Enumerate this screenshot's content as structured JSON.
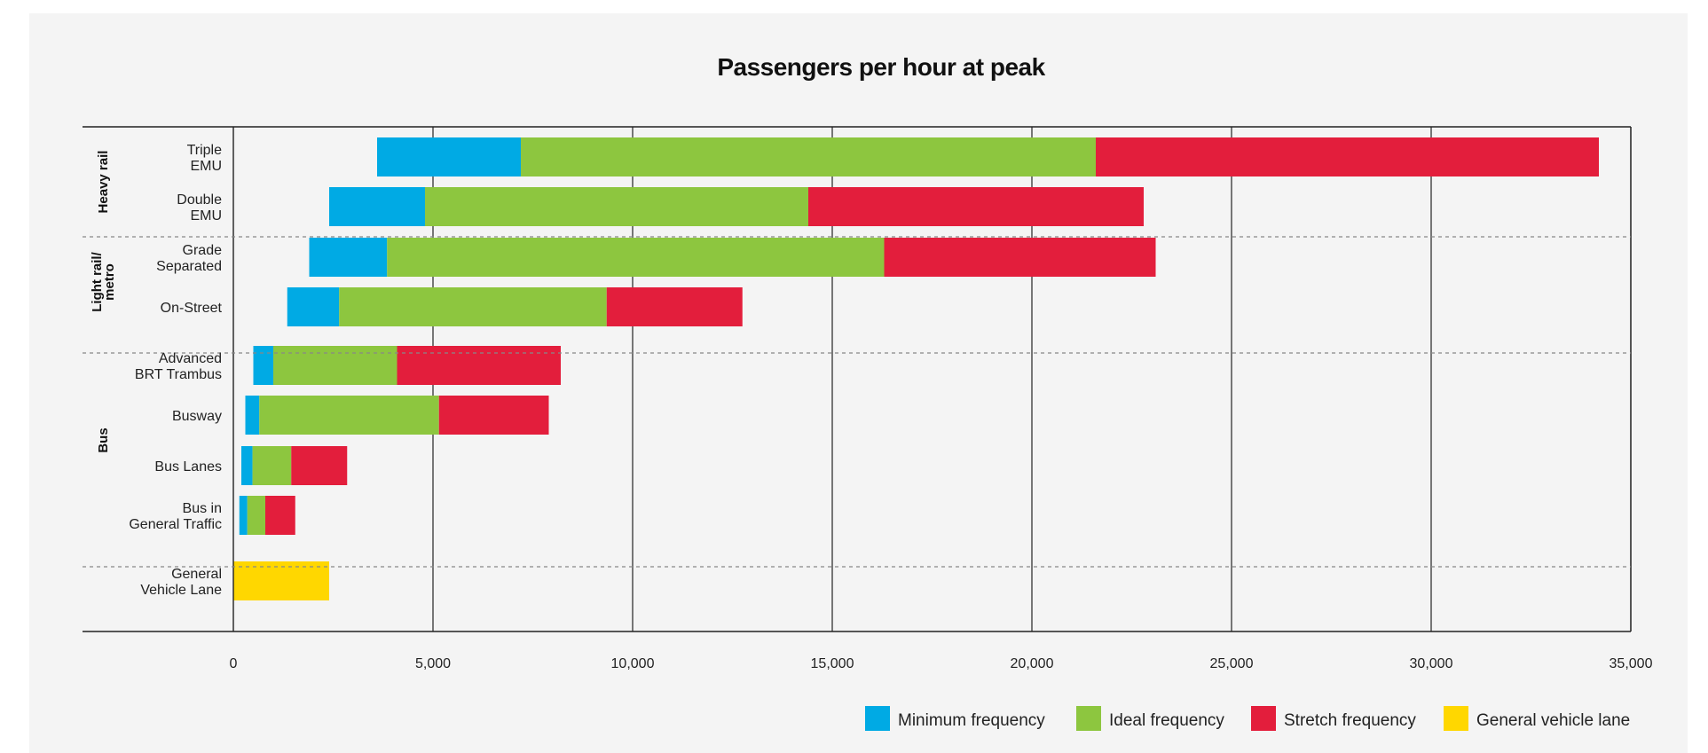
{
  "chart_data": {
    "type": "bar",
    "orientation": "horizontal",
    "stacked": true,
    "title": "Passengers per hour at peak",
    "xlim": [
      0,
      35000
    ],
    "x_ticks": [
      0,
      5000,
      10000,
      15000,
      20000,
      25000,
      30000,
      35000
    ],
    "x_tick_labels": [
      "0",
      "5,000",
      "10,000",
      "15,000",
      "20,000",
      "25,000",
      "30,000",
      "35,000"
    ],
    "grid": true,
    "legend_position": "bottom-right",
    "groups": [
      {
        "name": "Heavy rail",
        "categories": [
          0,
          1
        ]
      },
      {
        "name": "Light rail/ metro",
        "lines": [
          "Light rail/",
          "metro"
        ],
        "categories": [
          2,
          3
        ]
      },
      {
        "name": "Bus",
        "categories": [
          4,
          5,
          6,
          7
        ]
      },
      {
        "name": "",
        "categories": [
          8
        ]
      }
    ],
    "categories": [
      {
        "label": "Triple EMU",
        "lines": [
          "Triple",
          "EMU"
        ],
        "min_start": 3600,
        "minimum": 7200,
        "ideal": 21600,
        "stretch": 34200,
        "general": null
      },
      {
        "label": "Double EMU",
        "lines": [
          "Double",
          "EMU"
        ],
        "min_start": 2400,
        "minimum": 4800,
        "ideal": 14400,
        "stretch": 22800,
        "general": null
      },
      {
        "label": "Grade Separated",
        "lines": [
          "Grade",
          "Separated"
        ],
        "min_start": 1900,
        "minimum": 3850,
        "ideal": 16300,
        "stretch": 23100,
        "general": null
      },
      {
        "label": "On-Street",
        "lines": [
          "On-Street"
        ],
        "min_start": 1350,
        "minimum": 2650,
        "ideal": 9350,
        "stretch": 12750,
        "general": null
      },
      {
        "label": "Advanced BRT Trambus",
        "lines": [
          "Advanced",
          "BRT Trambus"
        ],
        "min_start": 500,
        "minimum": 1000,
        "ideal": 4100,
        "stretch": 8200,
        "general": null
      },
      {
        "label": "Busway",
        "lines": [
          "Busway"
        ],
        "min_start": 300,
        "minimum": 650,
        "ideal": 5150,
        "stretch": 7900,
        "general": null
      },
      {
        "label": "Bus Lanes",
        "lines": [
          "Bus Lanes"
        ],
        "min_start": 200,
        "minimum": 480,
        "ideal": 1450,
        "stretch": 2850,
        "general": null
      },
      {
        "label": "Bus in General Traffic",
        "lines": [
          "Bus in",
          "General Traffic"
        ],
        "min_start": 150,
        "minimum": 350,
        "ideal": 800,
        "stretch": 1550,
        "general": null
      },
      {
        "label": "General Vehicle Lane",
        "lines": [
          "General",
          "Vehicle Lane"
        ],
        "min_start": null,
        "minimum": null,
        "ideal": null,
        "stretch": null,
        "general": 2400
      }
    ],
    "series": [
      {
        "key": "minimum",
        "name": "Minimum frequency",
        "color": "#00aae4"
      },
      {
        "key": "ideal",
        "name": "Ideal frequency",
        "color": "#8dc63f"
      },
      {
        "key": "stretch",
        "name": "Stretch frequency",
        "color": "#e31e3c"
      },
      {
        "key": "general",
        "name": "General vehicle lane",
        "color": "#ffd700"
      }
    ]
  }
}
